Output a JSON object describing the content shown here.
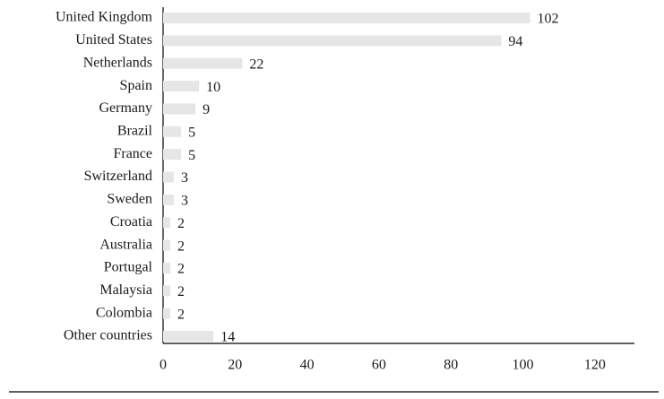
{
  "chart_data": {
    "type": "bar",
    "orientation": "horizontal",
    "categories": [
      "United Kingdom",
      "United States",
      "Netherlands",
      "Spain",
      "Germany",
      "Brazil",
      "France",
      "Switzerland",
      "Sweden",
      "Croatia",
      "Australia",
      "Portugal",
      "Malaysia",
      "Colombia",
      "Other countries"
    ],
    "values": [
      102,
      94,
      22,
      10,
      9,
      5,
      5,
      3,
      3,
      2,
      2,
      2,
      2,
      2,
      14
    ],
    "color": "#e6e6e6",
    "xlim": [
      0,
      131
    ],
    "xticks": [
      0,
      20,
      40,
      60,
      80,
      100,
      120
    ],
    "grid": false
  }
}
